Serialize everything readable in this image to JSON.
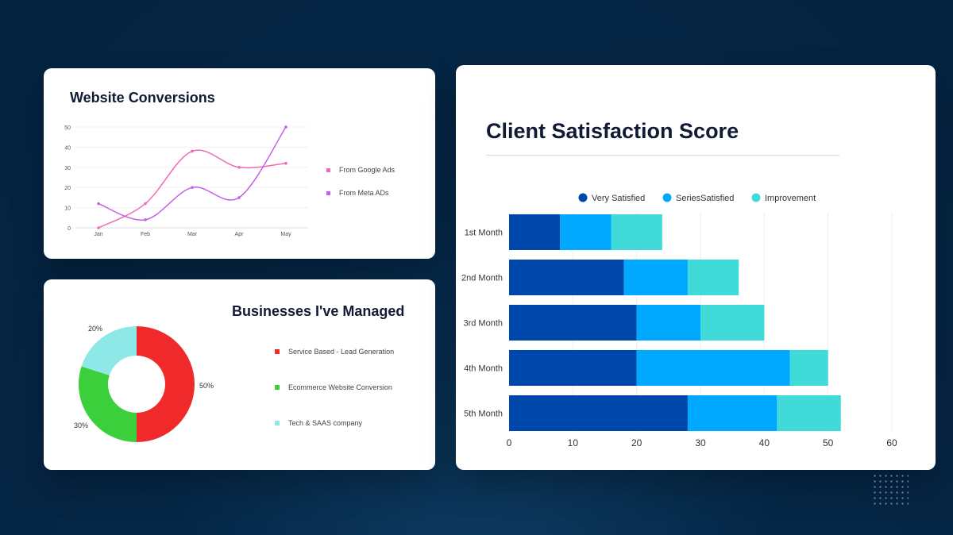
{
  "chart_data": [
    {
      "type": "line",
      "title": "Website Conversions",
      "categories": [
        "Jan",
        "Feb",
        "Mar",
        "Apr",
        "May"
      ],
      "ylim": [
        0,
        50
      ],
      "yticks": [
        0,
        10,
        20,
        30,
        40,
        50
      ],
      "grid": true,
      "legend": "right",
      "series": [
        {
          "name": "From Google Ads",
          "color": "#f06ab8",
          "values": [
            0,
            12,
            38,
            30,
            32
          ]
        },
        {
          "name": "From Meta ADs",
          "color": "#c65ee8",
          "values": [
            12,
            4,
            20,
            15,
            50
          ]
        }
      ]
    },
    {
      "type": "pie",
      "title": "Businesses I've Managed",
      "donut": true,
      "legend": "right",
      "slices": [
        {
          "name": "Service Based - Lead Generation",
          "value": 50,
          "label": "50%",
          "color": "#f02a2a"
        },
        {
          "name": "Ecommerce Website Conversion",
          "value": 30,
          "label": "30%",
          "color": "#3bcf3b"
        },
        {
          "name": "Tech & SAAS company",
          "value": 20,
          "label": "20%",
          "color": "#8ee8e8"
        }
      ]
    },
    {
      "type": "bar",
      "orientation": "horizontal",
      "stacked": true,
      "title": "Client Satisfaction Score",
      "categories": [
        "1st Month",
        "2nd Month",
        "3rd Month",
        "4th Month",
        "5th Month"
      ],
      "xlim": [
        0,
        60
      ],
      "xticks": [
        0,
        10,
        20,
        30,
        40,
        50,
        60
      ],
      "grid": true,
      "legend": "top",
      "series": [
        {
          "name": "Very Satisfied",
          "color": "#0047ab",
          "values": [
            8,
            18,
            20,
            20,
            28
          ]
        },
        {
          "name": "SeriesSatisfied",
          "color": "#00a8ff",
          "values": [
            8,
            10,
            10,
            24,
            14
          ]
        },
        {
          "name": "Improvement",
          "color": "#40dbd8",
          "values": [
            8,
            8,
            10,
            6,
            10
          ]
        }
      ]
    }
  ]
}
